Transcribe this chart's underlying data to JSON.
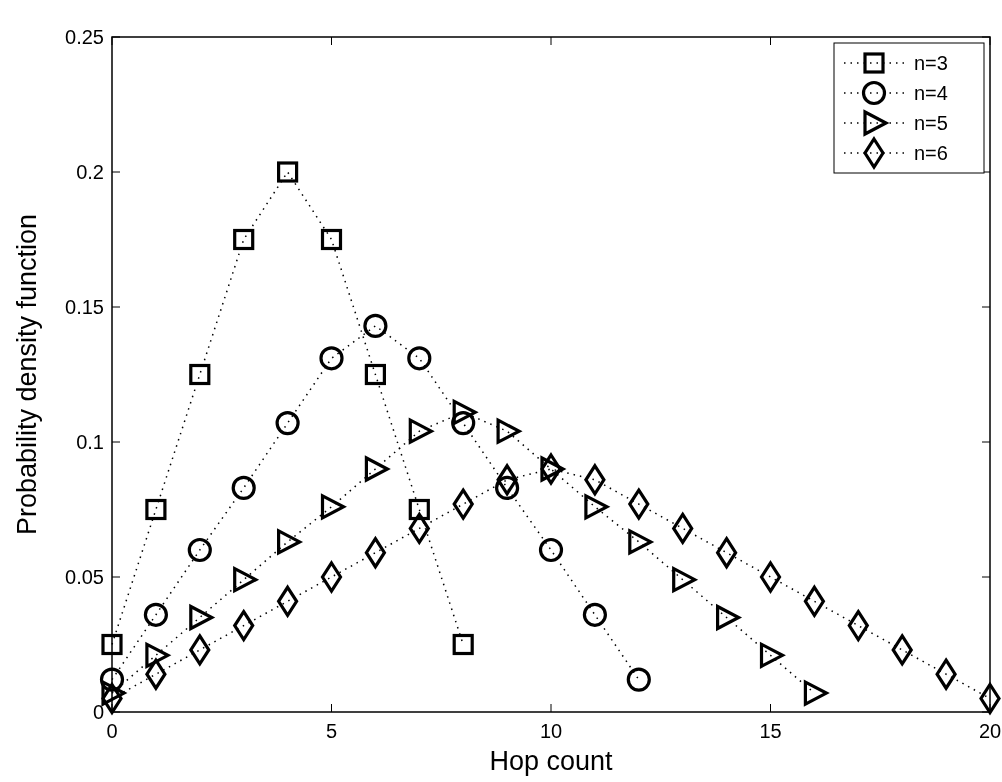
{
  "chart_data": {
    "type": "line",
    "xlabel": "Hop count",
    "ylabel": "Probability density function",
    "xlim": [
      0,
      20
    ],
    "xticks": [
      0,
      5,
      10,
      15,
      20
    ],
    "ylim": [
      0,
      0.25
    ],
    "yticks": [
      0,
      0.05,
      0.1,
      0.15,
      0.2,
      0.25
    ],
    "grid": false,
    "legend": "top right",
    "line_style": "dotted",
    "series": [
      {
        "name": "n=3",
        "color": "#000000",
        "marker": "square",
        "x": [
          0,
          1,
          2,
          3,
          4,
          5,
          6,
          7,
          8
        ],
        "values": [
          0.025,
          0.075,
          0.125,
          0.175,
          0.2,
          0.175,
          0.125,
          0.075,
          0.025
        ]
      },
      {
        "name": "n=4",
        "color": "#000000",
        "marker": "circle",
        "x": [
          0,
          1,
          2,
          3,
          4,
          5,
          6,
          7,
          8,
          9,
          10,
          11,
          12
        ],
        "values": [
          0.012,
          0.036,
          0.06,
          0.083,
          0.107,
          0.131,
          0.143,
          0.131,
          0.107,
          0.083,
          0.06,
          0.036,
          0.012
        ]
      },
      {
        "name": "n=5",
        "color": "#000000",
        "marker": "triangle",
        "x": [
          0,
          1,
          2,
          3,
          4,
          5,
          6,
          7,
          8,
          9,
          10,
          11,
          12,
          13,
          14,
          15,
          16
        ],
        "values": [
          0.007,
          0.021,
          0.035,
          0.049,
          0.063,
          0.076,
          0.09,
          0.104,
          0.111,
          0.104,
          0.09,
          0.076,
          0.063,
          0.049,
          0.035,
          0.021,
          0.007
        ]
      },
      {
        "name": "n=6",
        "color": "#000000",
        "marker": "diamond",
        "x": [
          0,
          1,
          2,
          3,
          4,
          5,
          6,
          7,
          8,
          9,
          10,
          11,
          12,
          13,
          14,
          15,
          16,
          17,
          18,
          19,
          20
        ],
        "values": [
          0.005,
          0.014,
          0.023,
          0.032,
          0.041,
          0.05,
          0.059,
          0.068,
          0.077,
          0.086,
          0.09,
          0.086,
          0.077,
          0.068,
          0.059,
          0.05,
          0.041,
          0.032,
          0.023,
          0.014,
          0.005
        ]
      }
    ]
  }
}
